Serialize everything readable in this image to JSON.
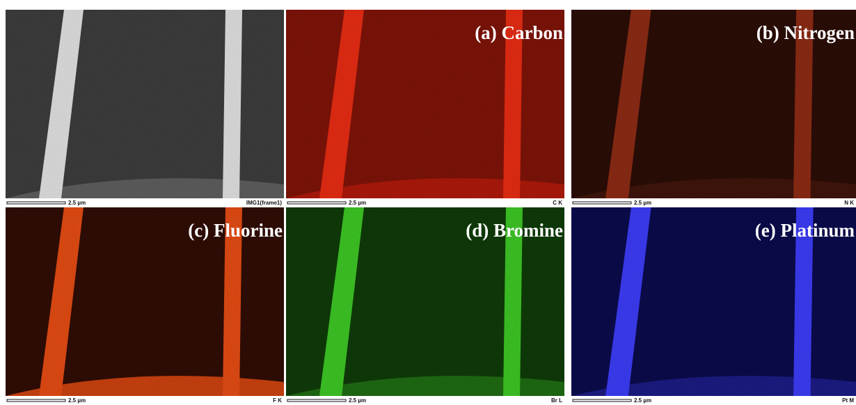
{
  "panels": [
    {
      "label": null,
      "scale_bar": "2.5 µm",
      "detector": "IMG1(frame1)"
    },
    {
      "label": "(a) Carbon",
      "scale_bar": "2.5 µm",
      "detector": "C K"
    },
    {
      "label": "(b) Nitrogen",
      "scale_bar": "2.5 µm",
      "detector": "N K"
    },
    {
      "label": "(c) Fluorine",
      "scale_bar": "2.5 µm",
      "detector": "F K"
    },
    {
      "label": "(d) Bromine",
      "scale_bar": "2.5 µm",
      "detector": "Br L"
    },
    {
      "label": "(e) Platinum",
      "scale_bar": "2.5 µm",
      "detector": "Pt M"
    }
  ]
}
